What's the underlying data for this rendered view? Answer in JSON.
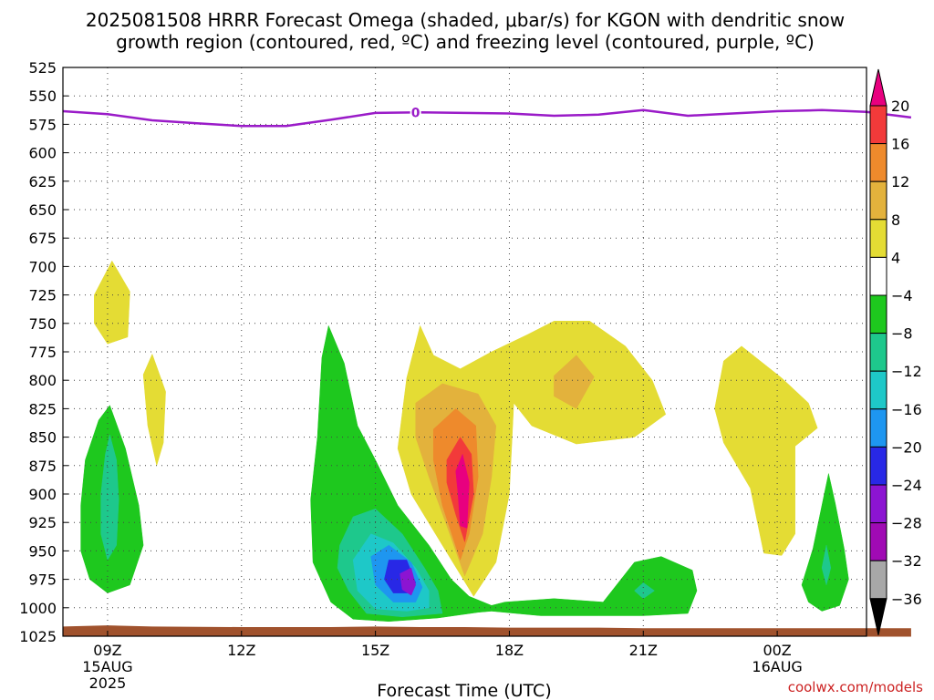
{
  "header": {
    "title_line1": "2025081508 HRRR Forecast Omega (shaded, μbar/s) for KGON with dendritic snow",
    "title_line2": "growth region (contoured, red, ºC) and freezing level (contoured, purple, ºC)"
  },
  "footer": {
    "source": "coolwx.com/models"
  },
  "chart_data": {
    "type": "heatmap",
    "xlabel": "Forecast Time (UTC)",
    "ylabel": "",
    "x_range": [
      "2025-08-15T08Z",
      "2025-08-16T02Z"
    ],
    "y_range_hpa": [
      1025,
      525
    ],
    "y_scale": "pressure",
    "grid": true,
    "y_ticks": [
      525,
      550,
      575,
      600,
      625,
      650,
      675,
      700,
      725,
      750,
      775,
      800,
      825,
      850,
      875,
      900,
      925,
      950,
      975,
      1000,
      1025
    ],
    "x_ticks": [
      {
        "hour_offset": 1,
        "lines": [
          "09Z",
          "15AUG",
          "2025"
        ]
      },
      {
        "hour_offset": 4,
        "lines": [
          "12Z"
        ]
      },
      {
        "hour_offset": 7,
        "lines": [
          "15Z"
        ]
      },
      {
        "hour_offset": 10,
        "lines": [
          "18Z"
        ]
      },
      {
        "hour_offset": 13,
        "lines": [
          "21Z"
        ]
      },
      {
        "hour_offset": 16,
        "lines": [
          "00Z",
          "16AUG"
        ]
      }
    ],
    "colorbar": {
      "labels": [
        "20",
        "16",
        "12",
        "8",
        "4",
        "−4",
        "−8",
        "−12",
        "−16",
        "−20",
        "−24",
        "−28",
        "−32",
        "−36"
      ],
      "bins": [
        {
          "range": [
            20,
            null
          ],
          "color": "#e8007f"
        },
        {
          "range": [
            16,
            20
          ],
          "color": "#f23a3a"
        },
        {
          "range": [
            12,
            16
          ],
          "color": "#ee8a2c"
        },
        {
          "range": [
            8,
            12
          ],
          "color": "#e3b23c"
        },
        {
          "range": [
            4,
            8
          ],
          "color": "#e4dc34"
        },
        {
          "range": [
            -4,
            4
          ],
          "color": "#ffffff"
        },
        {
          "range": [
            -8,
            -4
          ],
          "color": "#1ec81e"
        },
        {
          "range": [
            -12,
            -8
          ],
          "color": "#1ec88c"
        },
        {
          "range": [
            -16,
            -12
          ],
          "color": "#1ec8c8"
        },
        {
          "range": [
            -20,
            -16
          ],
          "color": "#1e96f0"
        },
        {
          "range": [
            -24,
            -20
          ],
          "color": "#2828e6"
        },
        {
          "range": [
            -28,
            -24
          ],
          "color": "#8c14d2"
        },
        {
          "range": [
            -32,
            -28
          ],
          "color": "#a00ab4"
        },
        {
          "range": [
            -36,
            -32
          ],
          "color": "#a8a8a8"
        },
        {
          "range": [
            null,
            -36
          ],
          "color": "#000000"
        }
      ]
    },
    "freezing_level": {
      "color": "#9a1bc8",
      "label": "0",
      "label_at_hour": 7.9,
      "hours": [
        0,
        1,
        2,
        3,
        4,
        5,
        6,
        7,
        8,
        9,
        10,
        11,
        12,
        13,
        14,
        15,
        16,
        17,
        18,
        19
      ],
      "pressure": [
        563.5,
        566,
        571.5,
        574,
        576.5,
        576.5,
        571,
        565,
        564.5,
        565,
        565.5,
        567.5,
        566.5,
        562.5,
        567.5,
        565.5,
        563.5,
        562.5,
        564,
        569
      ]
    },
    "omega_regions": [
      {
        "value": 5,
        "label": "4 to 8",
        "color": "#e4dc34",
        "points": [
          [
            0.7,
            725
          ],
          [
            1.1,
            695
          ],
          [
            1.5,
            722
          ],
          [
            1.45,
            762
          ],
          [
            1.0,
            768
          ],
          [
            0.7,
            750
          ]
        ]
      },
      {
        "value": 5,
        "label": "4 to 8",
        "color": "#e4dc34",
        "points": [
          [
            1.8,
            795
          ],
          [
            2.0,
            777
          ],
          [
            2.3,
            810
          ],
          [
            2.25,
            855
          ],
          [
            2.1,
            875
          ],
          [
            1.9,
            840
          ]
        ]
      },
      {
        "value": 5,
        "label": "4 to 8",
        "color": "#e4dc34",
        "points": [
          [
            7.7,
            798
          ],
          [
            8.0,
            752
          ],
          [
            8.3,
            778
          ],
          [
            8.9,
            790
          ],
          [
            9.6,
            775
          ],
          [
            10.4,
            760
          ],
          [
            11.0,
            748
          ],
          [
            11.8,
            748
          ],
          [
            12.6,
            770
          ],
          [
            13.2,
            800
          ],
          [
            13.5,
            830
          ],
          [
            12.8,
            850
          ],
          [
            11.5,
            856
          ],
          [
            10.5,
            840
          ],
          [
            10.1,
            820
          ],
          [
            10.0,
            900
          ],
          [
            9.7,
            960
          ],
          [
            9.2,
            990
          ],
          [
            8.5,
            945
          ],
          [
            7.8,
            900
          ],
          [
            7.5,
            860
          ]
        ]
      },
      {
        "value": 10,
        "label": "8 to 12",
        "color": "#e3b23c",
        "points": [
          [
            7.9,
            820
          ],
          [
            8.5,
            803
          ],
          [
            9.3,
            812
          ],
          [
            9.7,
            840
          ],
          [
            9.6,
            885
          ],
          [
            9.4,
            935
          ],
          [
            9.0,
            972
          ],
          [
            8.6,
            928
          ],
          [
            8.2,
            885
          ],
          [
            7.9,
            850
          ]
        ]
      },
      {
        "value": 10,
        "label": "8 to 12",
        "color": "#e3b23c",
        "points": [
          [
            11.0,
            796
          ],
          [
            11.5,
            778
          ],
          [
            11.9,
            797
          ],
          [
            11.5,
            825
          ],
          [
            11.0,
            814
          ]
        ]
      },
      {
        "value": 14,
        "label": "12 to 16",
        "color": "#ee8a2c",
        "points": [
          [
            8.3,
            843
          ],
          [
            8.8,
            825
          ],
          [
            9.25,
            840
          ],
          [
            9.3,
            885
          ],
          [
            9.1,
            935
          ],
          [
            8.9,
            958
          ],
          [
            8.5,
            910
          ],
          [
            8.3,
            870
          ]
        ]
      },
      {
        "value": 18,
        "label": "16 to 20",
        "color": "#f23a3a",
        "points": [
          [
            8.6,
            870
          ],
          [
            8.9,
            850
          ],
          [
            9.15,
            865
          ],
          [
            9.2,
            900
          ],
          [
            9.0,
            942
          ],
          [
            8.8,
            918
          ],
          [
            8.6,
            890
          ]
        ]
      },
      {
        "value": 22,
        "label": ">20",
        "color": "#e8007f",
        "points": [
          [
            8.8,
            880
          ],
          [
            8.95,
            865
          ],
          [
            9.1,
            890
          ],
          [
            9.05,
            930
          ],
          [
            8.9,
            928
          ],
          [
            8.85,
            900
          ]
        ]
      },
      {
        "value": 5,
        "label": "4 to 8",
        "color": "#e4dc34",
        "points": [
          [
            14.8,
            783
          ],
          [
            15.2,
            770
          ],
          [
            16.1,
            798
          ],
          [
            16.7,
            820
          ],
          [
            16.9,
            842
          ],
          [
            16.4,
            858
          ],
          [
            16.4,
            935
          ],
          [
            16.1,
            954
          ],
          [
            15.7,
            952
          ],
          [
            15.4,
            895
          ],
          [
            14.8,
            855
          ],
          [
            14.6,
            825
          ]
        ]
      },
      {
        "value": -6,
        "label": "−4 to −8",
        "color": "#1ec81e",
        "points": [
          [
            0.4,
            910
          ],
          [
            0.5,
            870
          ],
          [
            0.8,
            835
          ],
          [
            1.05,
            822
          ],
          [
            1.4,
            860
          ],
          [
            1.7,
            910
          ],
          [
            1.8,
            945
          ],
          [
            1.5,
            980
          ],
          [
            1.0,
            987
          ],
          [
            0.6,
            975
          ],
          [
            0.4,
            950
          ]
        ]
      },
      {
        "value": -10,
        "label": "−8 to −12",
        "color": "#1ec88c",
        "points": [
          [
            0.85,
            900
          ],
          [
            0.95,
            865
          ],
          [
            1.05,
            848
          ],
          [
            1.2,
            870
          ],
          [
            1.25,
            905
          ],
          [
            1.2,
            945
          ],
          [
            1.0,
            958
          ],
          [
            0.85,
            935
          ]
        ]
      },
      {
        "value": -6,
        "label": "−4 to −8",
        "color": "#1ec81e",
        "points": [
          [
            5.55,
            905
          ],
          [
            5.7,
            850
          ],
          [
            5.8,
            780
          ],
          [
            5.95,
            752
          ],
          [
            6.3,
            785
          ],
          [
            6.6,
            840
          ],
          [
            7.0,
            870
          ],
          [
            7.5,
            910
          ],
          [
            8.2,
            945
          ],
          [
            8.7,
            975
          ],
          [
            9.1,
            990
          ],
          [
            9.6,
            998
          ],
          [
            9.9,
            995
          ],
          [
            11.0,
            992
          ],
          [
            12.1,
            995
          ],
          [
            12.8,
            960
          ],
          [
            13.4,
            955
          ],
          [
            14.1,
            967
          ],
          [
            14.2,
            985
          ],
          [
            14.0,
            1005
          ],
          [
            13.0,
            1007
          ],
          [
            12.0,
            1007
          ],
          [
            10.7,
            1007
          ],
          [
            9.6,
            1003
          ],
          [
            9.3,
            1004
          ],
          [
            8.4,
            1009
          ],
          [
            7.3,
            1012
          ],
          [
            6.5,
            1010
          ],
          [
            6.0,
            995
          ],
          [
            5.6,
            960
          ]
        ]
      },
      {
        "value": -10,
        "label": "−8 to −12",
        "color": "#1ec88c",
        "points": [
          [
            6.2,
            945
          ],
          [
            6.5,
            920
          ],
          [
            7.0,
            913
          ],
          [
            7.6,
            935
          ],
          [
            8.1,
            965
          ],
          [
            8.4,
            985
          ],
          [
            8.5,
            1005
          ],
          [
            7.6,
            1008
          ],
          [
            6.8,
            1005
          ],
          [
            6.4,
            985
          ],
          [
            6.15,
            965
          ]
        ]
      },
      {
        "value": -10,
        "label": "−8 to −12",
        "color": "#1ec88c",
        "points": [
          [
            12.8,
            985
          ],
          [
            13.0,
            978
          ],
          [
            13.25,
            985
          ],
          [
            13.0,
            992
          ]
        ]
      },
      {
        "value": -14,
        "label": "−12 to −16",
        "color": "#1ec8c8",
        "points": [
          [
            6.5,
            958
          ],
          [
            6.9,
            935
          ],
          [
            7.4,
            943
          ],
          [
            7.9,
            965
          ],
          [
            8.2,
            985
          ],
          [
            8.2,
            1000
          ],
          [
            7.7,
            1003
          ],
          [
            7.0,
            1001
          ],
          [
            6.6,
            985
          ]
        ]
      },
      {
        "value": -18,
        "label": "−16 to −20",
        "color": "#1e96f0",
        "points": [
          [
            6.9,
            955
          ],
          [
            7.3,
            945
          ],
          [
            7.8,
            960
          ],
          [
            8.05,
            982
          ],
          [
            7.9,
            995
          ],
          [
            7.4,
            995
          ],
          [
            7.0,
            980
          ]
        ]
      },
      {
        "value": -22,
        "label": "−20 to −24",
        "color": "#2828e6",
        "points": [
          [
            7.3,
            958
          ],
          [
            7.7,
            958
          ],
          [
            7.9,
            978
          ],
          [
            7.8,
            987
          ],
          [
            7.4,
            987
          ],
          [
            7.2,
            975
          ]
        ]
      },
      {
        "value": -26,
        "label": "−24 to −28",
        "color": "#8c14d2",
        "points": [
          [
            7.55,
            970
          ],
          [
            7.8,
            965
          ],
          [
            7.9,
            980
          ],
          [
            7.8,
            989
          ],
          [
            7.6,
            984
          ]
        ]
      },
      {
        "value": -6,
        "label": "−4 to −8",
        "color": "#1ec81e",
        "points": [
          [
            16.55,
            980
          ],
          [
            16.8,
            948
          ],
          [
            17.0,
            910
          ],
          [
            17.15,
            882
          ],
          [
            17.3,
            908
          ],
          [
            17.5,
            948
          ],
          [
            17.6,
            975
          ],
          [
            17.4,
            998
          ],
          [
            17.0,
            1003
          ],
          [
            16.7,
            995
          ]
        ]
      },
      {
        "value": -10,
        "label": "−8 to −12",
        "color": "#1ec88c",
        "points": [
          [
            17.0,
            965
          ],
          [
            17.1,
            945
          ],
          [
            17.2,
            965
          ],
          [
            17.1,
            980
          ]
        ]
      }
    ],
    "ground": {
      "label": "terrain",
      "color": "#a0522d",
      "hours": [
        0,
        0.5,
        1,
        1.5,
        2,
        4,
        6,
        7,
        8,
        9,
        10,
        11,
        12,
        13,
        14,
        15,
        16,
        17,
        18,
        19
      ],
      "pressure": [
        1016.5,
        1016,
        1015.5,
        1016,
        1016.5,
        1017,
        1017,
        1016.5,
        1017,
        1017,
        1017.5,
        1017.5,
        1017.5,
        1018,
        1018,
        1018,
        1018,
        1018,
        1018,
        1018
      ]
    }
  }
}
